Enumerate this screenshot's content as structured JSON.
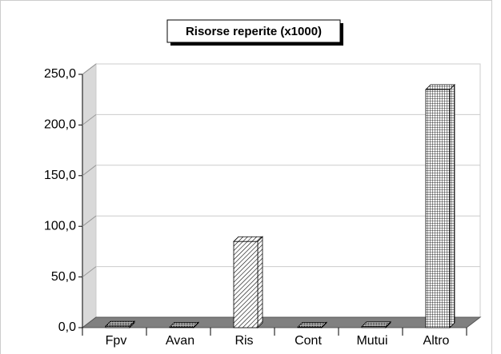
{
  "chart_data": {
    "type": "bar3d",
    "title": "Risorse reperite (x1000)",
    "categories": [
      "Fpv",
      "Avan",
      "Ris",
      "Cont",
      "Mutui",
      "Altro"
    ],
    "values": [
      1.5,
      0.5,
      85,
      0.5,
      1,
      235
    ],
    "patterns": [
      "dense",
      "dense",
      "diagonal",
      "dense",
      "dense",
      "grid"
    ],
    "ylim": [
      0,
      250
    ],
    "yticks": [
      {
        "value": 0,
        "label": "0,0"
      },
      {
        "value": 50,
        "label": "50,0"
      },
      {
        "value": 100,
        "label": "100,0"
      },
      {
        "value": 150,
        "label": "150,0"
      },
      {
        "value": 200,
        "label": "200,0"
      },
      {
        "value": 250,
        "label": "250,0"
      }
    ],
    "grid": true
  }
}
